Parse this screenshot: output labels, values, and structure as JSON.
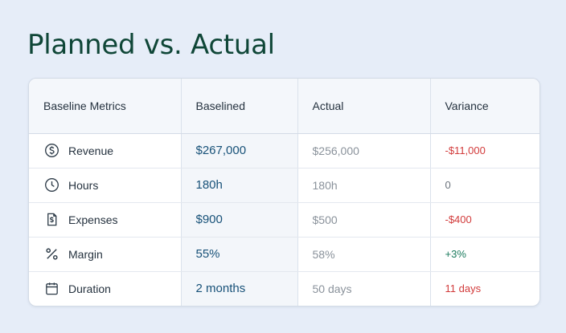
{
  "title": "Planned vs. Actual",
  "colors": {
    "title": "#0f4637",
    "baseline_text": "#175178",
    "negative": "#d23b3b",
    "positive": "#1a7a5c",
    "neutral": "#6b737c"
  },
  "table": {
    "headers": [
      "Baseline Metrics",
      "Baselined",
      "Actual",
      "Variance"
    ],
    "rows": [
      {
        "icon": "dollar-circle-icon",
        "metric": "Revenue",
        "baselined": "$267,000",
        "actual": "$256,000",
        "variance": "-$11,000",
        "variance_tone": "negative"
      },
      {
        "icon": "clock-icon",
        "metric": "Hours",
        "baselined": "180h",
        "actual": "180h",
        "variance": "0",
        "variance_tone": "neutral"
      },
      {
        "icon": "receipt-icon",
        "metric": "Expenses",
        "baselined": "$900",
        "actual": "$500",
        "variance": "-$400",
        "variance_tone": "negative"
      },
      {
        "icon": "percent-icon",
        "metric": "Margin",
        "baselined": "55%",
        "actual": "58%",
        "variance": "+3%",
        "variance_tone": "positive"
      },
      {
        "icon": "calendar-icon",
        "metric": "Duration",
        "baselined": "2 months",
        "actual": "50 days",
        "variance": "11 days",
        "variance_tone": "negative"
      }
    ]
  }
}
